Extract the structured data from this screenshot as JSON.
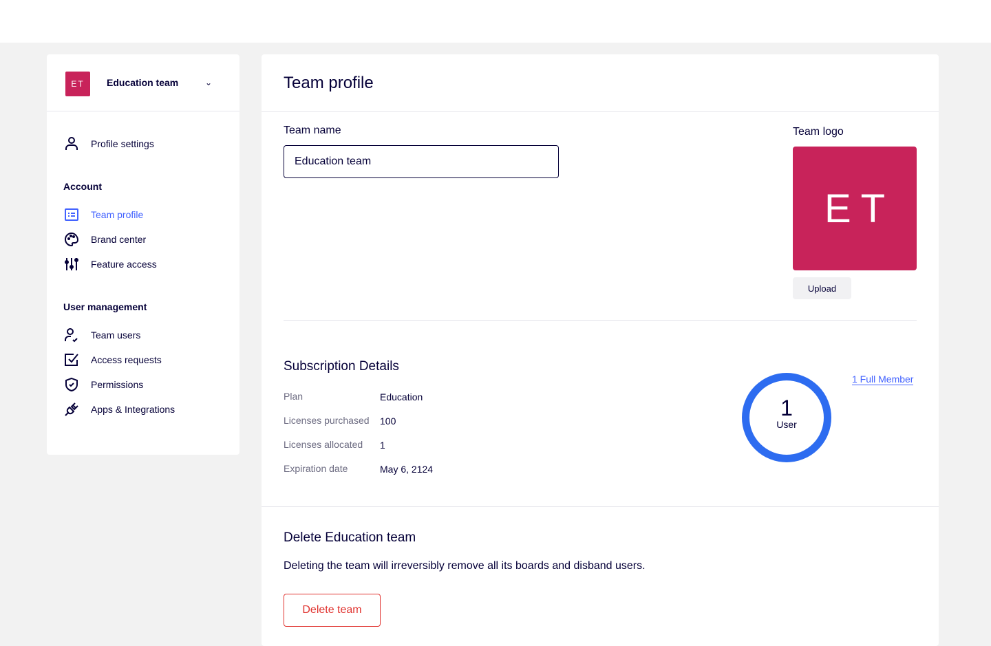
{
  "sidebar": {
    "team_initials": "ET",
    "team_name": "Education team",
    "profile_settings": "Profile settings",
    "account_heading": "Account",
    "account_items": [
      {
        "label": "Team profile",
        "icon": "card-icon",
        "active": true
      },
      {
        "label": "Brand center",
        "icon": "palette-icon"
      },
      {
        "label": "Feature access",
        "icon": "sliders-icon"
      }
    ],
    "user_heading": "User management",
    "user_items": [
      {
        "label": "Team users",
        "icon": "user-check-icon"
      },
      {
        "label": "Access requests",
        "icon": "checkbox-icon"
      },
      {
        "label": "Permissions",
        "icon": "shield-icon"
      },
      {
        "label": "Apps & Integrations",
        "icon": "plug-icon"
      }
    ]
  },
  "main": {
    "title": "Team profile",
    "team_name_label": "Team name",
    "team_name_value": "Education team",
    "team_logo_label": "Team logo",
    "logo_initials": "ET",
    "upload_label": "Upload",
    "subscription": {
      "title": "Subscription Details",
      "rows": [
        {
          "k": "Plan",
          "v": "Education"
        },
        {
          "k": "Licenses purchased",
          "v": "100"
        },
        {
          "k": "Licenses allocated",
          "v": "1"
        },
        {
          "k": "Expiration date",
          "v": "May 6, 2124"
        }
      ],
      "user_count": "1",
      "user_label": "User",
      "full_member_link": "1 Full Member"
    },
    "delete": {
      "title": "Delete Education team",
      "description": "Deleting the team will irreversibly remove all its boards and disband users.",
      "button": "Delete team"
    }
  },
  "colors": {
    "accent": "#4262ff",
    "brand": "#c8235a",
    "ring": "#2d6cf0",
    "danger": "#e0322e"
  }
}
